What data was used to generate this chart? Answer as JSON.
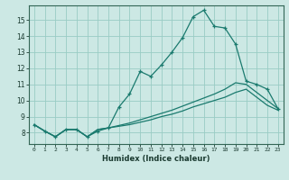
{
  "xlabel": "Humidex (Indice chaleur)",
  "ylabel": "",
  "bg_color": "#cce8e4",
  "line_color": "#1a7a6e",
  "grid_color": "#99ccc4",
  "xlim": [
    -0.5,
    23.5
  ],
  "ylim": [
    7.3,
    15.9
  ],
  "xticks": [
    0,
    1,
    2,
    3,
    4,
    5,
    6,
    7,
    8,
    9,
    10,
    11,
    12,
    13,
    14,
    15,
    16,
    17,
    18,
    19,
    20,
    21,
    22,
    23
  ],
  "yticks": [
    8,
    9,
    10,
    11,
    12,
    13,
    14,
    15
  ],
  "series1_x": [
    0,
    1,
    2,
    3,
    4,
    5,
    6,
    7,
    8,
    9,
    10,
    11,
    12,
    13,
    14,
    15,
    16,
    17,
    18,
    19,
    20,
    21,
    22,
    23
  ],
  "series1_y": [
    8.5,
    8.1,
    7.75,
    8.2,
    8.2,
    7.75,
    8.1,
    8.3,
    9.6,
    10.4,
    11.8,
    11.5,
    12.2,
    13.0,
    13.9,
    15.2,
    15.6,
    14.6,
    14.5,
    13.5,
    11.2,
    11.0,
    10.7,
    9.5
  ],
  "series2_x": [
    0,
    1,
    2,
    3,
    4,
    5,
    6,
    7,
    8,
    9,
    10,
    11,
    12,
    13,
    14,
    15,
    16,
    17,
    18,
    19,
    20,
    21,
    22,
    23
  ],
  "series2_y": [
    8.5,
    8.1,
    7.75,
    8.2,
    8.2,
    7.75,
    8.2,
    8.3,
    8.45,
    8.6,
    8.8,
    9.0,
    9.2,
    9.4,
    9.65,
    9.9,
    10.15,
    10.4,
    10.7,
    11.1,
    11.0,
    10.5,
    10.0,
    9.5
  ],
  "series3_x": [
    0,
    1,
    2,
    3,
    4,
    5,
    6,
    7,
    8,
    9,
    10,
    11,
    12,
    13,
    14,
    15,
    16,
    17,
    18,
    19,
    20,
    21,
    22,
    23
  ],
  "series3_y": [
    8.5,
    8.1,
    7.75,
    8.2,
    8.2,
    7.75,
    8.2,
    8.3,
    8.4,
    8.5,
    8.65,
    8.8,
    9.0,
    9.15,
    9.35,
    9.6,
    9.8,
    10.0,
    10.2,
    10.5,
    10.7,
    10.2,
    9.7,
    9.4
  ],
  "marker": "+",
  "markersize": 3.5,
  "linewidth": 0.9
}
